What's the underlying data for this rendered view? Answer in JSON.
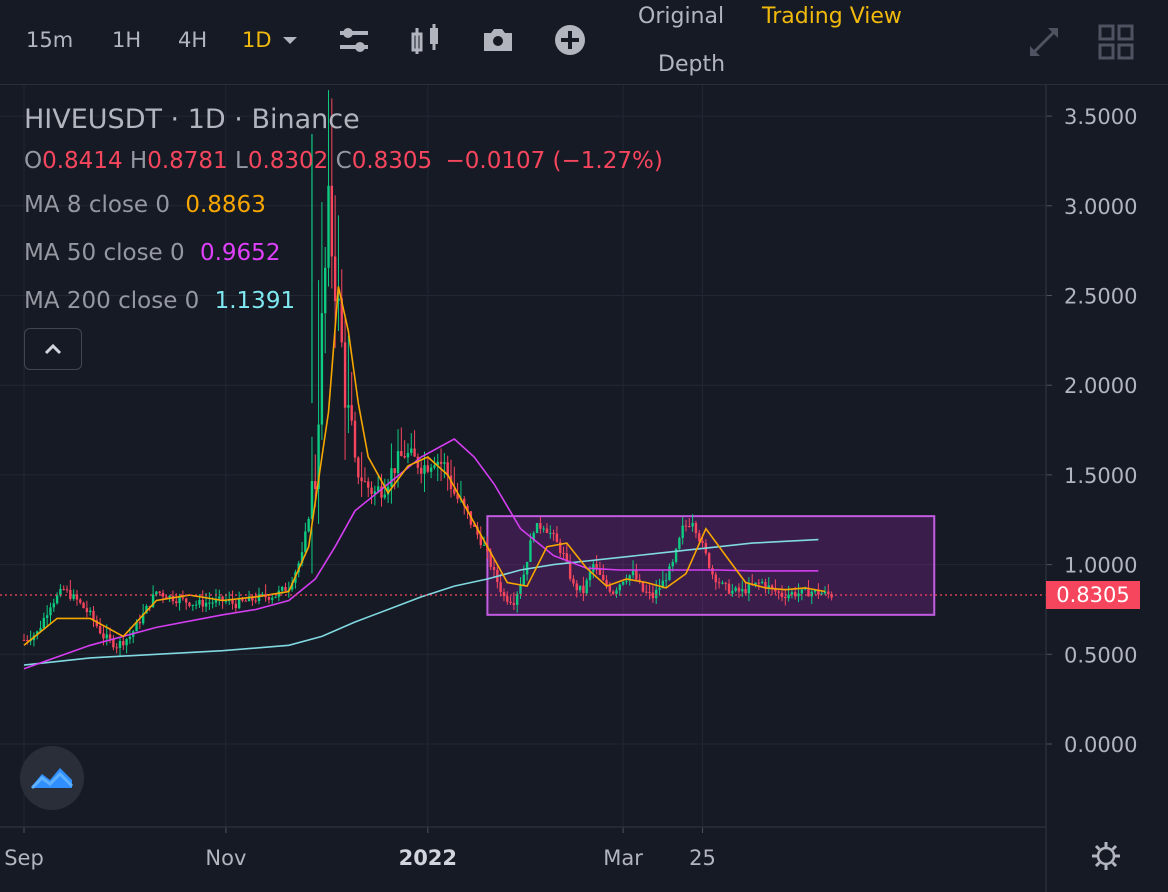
{
  "toolbar": {
    "intervals": [
      "15m",
      "1H",
      "4H",
      "1D"
    ],
    "active_interval": "1D",
    "views": {
      "original": "Original",
      "trading_view": "Trading View",
      "depth": "Depth"
    },
    "icons": [
      "indicator-settings-icon",
      "candlestick-type-icon",
      "camera-icon",
      "add-icon",
      "fullscreen-icon",
      "layout-grid-icon"
    ]
  },
  "legend": {
    "title": "HIVEUSDT · 1D · Binance",
    "ohlc": {
      "o_key": "O",
      "o": "0.8414",
      "h_key": "H",
      "h": "0.8781",
      "l_key": "L",
      "l": "0.8302",
      "c_key": "C",
      "c": "0.8305",
      "change": "−0.0107 (−1.27%)"
    },
    "ma8": {
      "label": "MA 8 close 0",
      "value": "0.8863",
      "color": "#f7a600"
    },
    "ma50": {
      "label": "MA 50 close 0",
      "value": "0.9652",
      "color": "#e040fb"
    },
    "ma200": {
      "label": "MA 200 close 0",
      "value": "1.1391",
      "color": "#7fe8f0"
    }
  },
  "colors": {
    "up": "#0ecb81",
    "down": "#f6465d",
    "ma8": "#f7a600",
    "ma50": "#d43ef0",
    "ma200": "#80d8e0",
    "rect_fill": "#9c27b0",
    "last_price": "#f6465d",
    "bg": "#161a25"
  },
  "last_price_label": "0.8305",
  "chart_data": {
    "type": "candlestick",
    "symbol": "HIVEUSDT",
    "interval": "1D",
    "exchange": "Binance",
    "ylim": [
      -0.45,
      3.65
    ],
    "yticks": [
      "3.5000",
      "3.0000",
      "2.5000",
      "2.0000",
      "1.5000",
      "1.0000",
      "0.5000",
      "0.0000"
    ],
    "xticks": [
      {
        "label": "Sep",
        "day": 0
      },
      {
        "label": "Nov",
        "day": 61
      },
      {
        "label": "2022",
        "day": 122
      },
      {
        "label": "Mar",
        "day": 181
      },
      {
        "label": "25",
        "day": 205
      }
    ],
    "close_path_days": [
      0,
      4,
      8,
      12,
      16,
      20,
      24,
      28,
      32,
      36,
      40,
      44,
      48,
      52,
      56,
      60,
      64,
      68,
      72,
      76,
      80,
      84,
      88,
      90,
      92,
      94,
      96,
      98,
      100,
      103,
      106,
      109,
      112,
      115,
      118,
      121,
      124,
      127,
      130,
      133,
      136,
      139,
      142,
      145,
      148,
      151,
      154,
      157,
      160,
      163,
      166,
      169,
      172,
      175,
      178,
      181,
      184,
      187,
      190,
      193,
      196,
      199,
      202,
      205,
      208,
      211,
      214,
      217,
      220,
      223,
      226,
      229,
      232,
      235,
      238,
      241,
      244
    ],
    "close_path_values": [
      0.58,
      0.62,
      0.78,
      0.86,
      0.8,
      0.72,
      0.6,
      0.55,
      0.6,
      0.72,
      0.85,
      0.82,
      0.8,
      0.78,
      0.79,
      0.8,
      0.78,
      0.8,
      0.82,
      0.83,
      0.88,
      1.05,
      1.5,
      2.3,
      2.95,
      2.6,
      2.2,
      1.8,
      1.55,
      1.45,
      1.4,
      1.45,
      1.55,
      1.62,
      1.58,
      1.55,
      1.6,
      1.55,
      1.4,
      1.3,
      1.2,
      1.1,
      0.95,
      0.82,
      0.8,
      0.95,
      1.2,
      1.22,
      1.15,
      1.05,
      0.88,
      0.85,
      1.0,
      0.9,
      0.85,
      0.92,
      0.95,
      0.85,
      0.82,
      0.9,
      1.0,
      1.2,
      1.25,
      1.1,
      0.95,
      0.88,
      0.85,
      0.85,
      0.88,
      0.9,
      0.86,
      0.83,
      0.84,
      0.84,
      0.85,
      0.84,
      0.83
    ],
    "ma8": {
      "days": [
        0,
        10,
        20,
        30,
        40,
        50,
        60,
        70,
        80,
        86,
        92,
        95,
        98,
        101,
        104,
        110,
        116,
        122,
        128,
        134,
        140,
        146,
        152,
        158,
        164,
        170,
        176,
        182,
        188,
        194,
        200,
        206,
        212,
        218,
        224,
        230,
        236,
        242
      ],
      "values": [
        0.55,
        0.7,
        0.7,
        0.6,
        0.8,
        0.83,
        0.8,
        0.82,
        0.85,
        1.1,
        1.85,
        2.55,
        2.3,
        1.9,
        1.6,
        1.4,
        1.55,
        1.6,
        1.5,
        1.3,
        1.1,
        0.9,
        0.88,
        1.1,
        1.12,
        0.98,
        0.88,
        0.92,
        0.9,
        0.87,
        0.95,
        1.2,
        1.05,
        0.9,
        0.87,
        0.86,
        0.87,
        0.85
      ]
    },
    "ma50": {
      "days": [
        0,
        20,
        40,
        60,
        70,
        80,
        88,
        94,
        100,
        110,
        120,
        130,
        136,
        142,
        150,
        160,
        170,
        180,
        190,
        200,
        210,
        220,
        230,
        240
      ],
      "values": [
        0.42,
        0.55,
        0.65,
        0.72,
        0.75,
        0.8,
        0.92,
        1.1,
        1.3,
        1.45,
        1.6,
        1.7,
        1.6,
        1.45,
        1.2,
        1.05,
        0.98,
        0.97,
        0.97,
        0.97,
        0.97,
        0.965,
        0.965,
        0.9652
      ]
    },
    "ma200": {
      "days": [
        0,
        20,
        40,
        60,
        80,
        90,
        100,
        110,
        120,
        130,
        140,
        150,
        160,
        170,
        180,
        190,
        200,
        210,
        220,
        230,
        240
      ],
      "values": [
        0.44,
        0.48,
        0.5,
        0.52,
        0.55,
        0.6,
        0.68,
        0.75,
        0.82,
        0.88,
        0.92,
        0.97,
        1.0,
        1.02,
        1.04,
        1.06,
        1.08,
        1.1,
        1.12,
        1.13,
        1.1391
      ]
    },
    "consolidation_box": {
      "day_start": 140,
      "day_end": 275,
      "price_low": 0.72,
      "price_high": 1.27
    },
    "last_price": 0.8305
  }
}
